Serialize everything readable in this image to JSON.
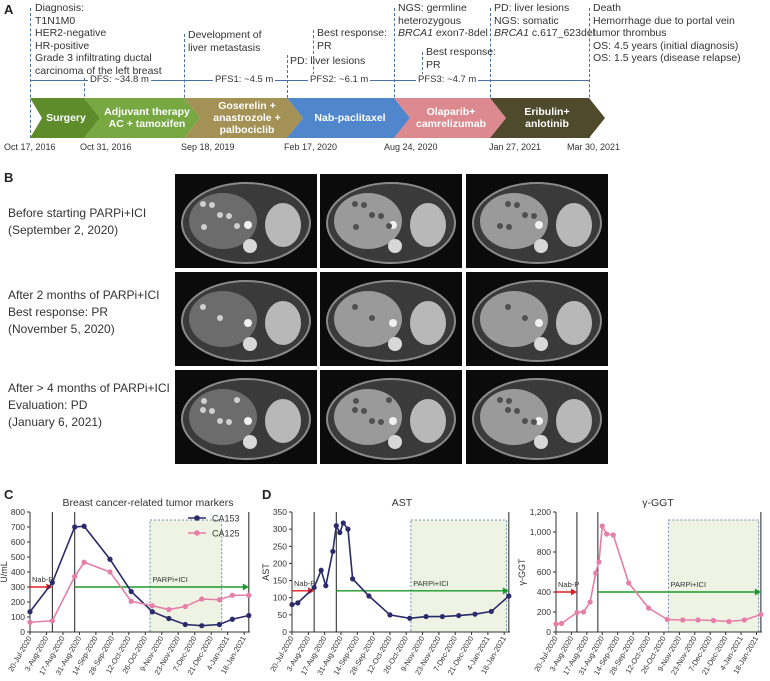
{
  "panel_labels": {
    "a": "A",
    "b": "B",
    "c": "C",
    "d": "D"
  },
  "timeline": {
    "annotations": {
      "diagnosis": [
        "Diagnosis:",
        "T1N1M0",
        "HER2-negative",
        "HR-positive",
        "Grade 3 infiltrating ductal",
        "carcinoma of the left breast"
      ],
      "liver_mets": [
        "Development of",
        "liver metastasis"
      ],
      "pd1": "PD: liver lesions",
      "best_pr": [
        "Best response:",
        "PR"
      ],
      "ngs_germline": [
        "NGS: germline",
        "heterozygous"
      ],
      "ngs_germline_gene": "BRCA1",
      "ngs_germline_var": " exon7-8del",
      "best_pr2": [
        "Best response:",
        "PR"
      ],
      "pd2": "PD: liver lesions",
      "ngs_somatic": "NGS: somatic",
      "ngs_somatic_gene": "BRCA1",
      "ngs_somatic_var": " c.617_623del",
      "death": [
        "Death",
        "Hemorrhage due to portal vein",
        "tumor thrombus",
        "OS: 4.5 years (initial diagnosis)",
        "OS: 1.5 years (disease relapse)"
      ]
    },
    "intervals": [
      "DFS: ~34.8 m",
      "PFS1: ~4.5 m",
      "PFS2: ~6.1 m",
      "PFS3: ~4.7 m"
    ],
    "treatments": [
      {
        "label": "Surgery",
        "color": "#5f8c2a"
      },
      {
        "label": "Adjuvant therapy\nAC + tamoxifen",
        "color": "#77a842"
      },
      {
        "label": "Goserelin +\nanastrozole +\npalbociclib",
        "color": "#a39155"
      },
      {
        "label": "Nab-paclitaxel",
        "color": "#4f86cc"
      },
      {
        "label": "Olaparib+\ncamrelizumab",
        "color": "#dc8a8f"
      },
      {
        "label": "Eribulin+\nanlotinib",
        "color": "#4f4a2c"
      }
    ],
    "dates": [
      "Oct 17, 2016",
      "Oct 31, 2016",
      "Sep 18, 2019",
      "Feb 17, 2020",
      "Aug 24, 2020",
      "Jan 27, 2021",
      "Mar 30, 2021"
    ]
  },
  "imaging": {
    "rows": [
      {
        "lines": [
          "Before starting PARPi+ICI",
          "(September 2, 2020)"
        ]
      },
      {
        "lines": [
          "After 2 months of PARPi+ICI",
          "Best response: PR",
          "(November 5, 2020)"
        ]
      },
      {
        "lines": [
          "After > 4 months of PARPi+ICI",
          "Evaluation: PD",
          "(January 6, 2021)"
        ]
      }
    ]
  },
  "chart_data": [
    {
      "type": "line",
      "title": "Breast cancer-related tumor markers",
      "ylabel": "U/mL",
      "ylim": [
        0,
        800
      ],
      "yticks": [
        0,
        100,
        200,
        300,
        400,
        500,
        600,
        700,
        800
      ],
      "xticks": [
        "20-Jul-2020",
        "3-Aug-2020",
        "17-Aug-2020",
        "31-Aug-2020",
        "14-Sep-2020",
        "28-Sep-2020",
        "12-Oct-2020",
        "26-Oct-2020",
        "9-Nov-2020",
        "23-Nov-2020",
        "7-Dec-2020",
        "21-Dec-2020",
        "4-Jan-2021",
        "18-Jan-2021"
      ],
      "xrange": [
        "2020-07-20",
        "2021-01-23"
      ],
      "series": [
        {
          "name": "CA153",
          "color": "#2b2a6b",
          "points": [
            [
              "2020-07-20",
              135
            ],
            [
              "2020-08-08",
              330
            ],
            [
              "2020-08-27",
              700
            ],
            [
              "2020-09-04",
              705
            ],
            [
              "2020-09-26",
              485
            ],
            [
              "2020-10-14",
              270
            ],
            [
              "2020-11-01",
              135
            ],
            [
              "2020-11-15",
              90
            ],
            [
              "2020-11-29",
              50
            ],
            [
              "2020-12-13",
              42
            ],
            [
              "2020-12-28",
              50
            ],
            [
              "2021-01-08",
              85
            ],
            [
              "2021-01-22",
              110
            ]
          ]
        },
        {
          "name": "CA125",
          "color": "#e57fa8",
          "points": [
            [
              "2020-07-20",
              65
            ],
            [
              "2020-08-08",
              75
            ],
            [
              "2020-08-27",
              370
            ],
            [
              "2020-09-04",
              465
            ],
            [
              "2020-09-26",
              400
            ],
            [
              "2020-10-14",
              205
            ],
            [
              "2020-11-01",
              175
            ],
            [
              "2020-11-15",
              150
            ],
            [
              "2020-11-29",
              170
            ],
            [
              "2020-12-13",
              220
            ],
            [
              "2020-12-28",
              215
            ],
            [
              "2021-01-08",
              245
            ],
            [
              "2021-01-22",
              245
            ]
          ]
        }
      ],
      "vlines": [
        "2020-08-08",
        "2020-08-27",
        "2021-01-22"
      ],
      "shade": [
        "2020-10-30",
        "2020-12-30"
      ],
      "arrows": [
        {
          "label": "Nab-P",
          "color": "#e02020",
          "from": "2020-07-20",
          "to": "2020-08-08",
          "y": 300
        },
        {
          "label": "PARPi+ICI",
          "color": "#1a9a2a",
          "from": "2020-08-27",
          "to": "2021-01-22",
          "y": 300
        }
      ]
    },
    {
      "type": "line",
      "title": "AST",
      "ylabel": "AST",
      "ylim": [
        0,
        350
      ],
      "yticks": [
        0,
        50,
        100,
        150,
        200,
        250,
        300,
        350
      ],
      "xticks": [
        "20-Jul-2020",
        "3-Aug-2020",
        "17-Aug-2020",
        "31-Aug-2020",
        "14-Sep-2020",
        "28-Sep-2020",
        "12-Oct-2020",
        "26-Oct-2020",
        "9-Nov-2020",
        "23-Nov-2020",
        "7-Dec-2020",
        "21-Dec-2020",
        "4-Jan-2021",
        "18-Jan-2021"
      ],
      "xrange": [
        "2020-07-20",
        "2021-01-23"
      ],
      "series": [
        {
          "name": "",
          "color": "#2b2a6b",
          "points": [
            [
              "2020-07-20",
              80
            ],
            [
              "2020-07-25",
              85
            ],
            [
              "2020-08-08",
              130
            ],
            [
              "2020-08-14",
              180
            ],
            [
              "2020-08-18",
              135
            ],
            [
              "2020-08-24",
              235
            ],
            [
              "2020-08-27",
              310
            ],
            [
              "2020-08-30",
              290
            ],
            [
              "2020-09-02",
              318
            ],
            [
              "2020-09-06",
              300
            ],
            [
              "2020-09-10",
              155
            ],
            [
              "2020-09-24",
              105
            ],
            [
              "2020-10-12",
              50
            ],
            [
              "2020-10-29",
              40
            ],
            [
              "2020-11-12",
              45
            ],
            [
              "2020-11-26",
              45
            ],
            [
              "2020-12-10",
              48
            ],
            [
              "2020-12-24",
              52
            ],
            [
              "2021-01-07",
              60
            ],
            [
              "2021-01-22",
              105
            ]
          ]
        }
      ],
      "vlines": [
        "2020-08-08",
        "2020-08-27",
        "2021-01-22"
      ],
      "shade": [
        "2020-10-30",
        "2021-01-20"
      ],
      "arrows": [
        {
          "label": "Nab-P",
          "color": "#e02020",
          "from": "2020-07-20",
          "to": "2020-08-08",
          "y": 120
        },
        {
          "label": "PARPi+ICI",
          "color": "#1a9a2a",
          "from": "2020-08-27",
          "to": "2021-01-22",
          "y": 120
        }
      ]
    },
    {
      "type": "line",
      "title": "γ-GGT",
      "ylabel": "γ-GGT",
      "ylim": [
        0,
        1200
      ],
      "yticks": [
        0,
        200,
        400,
        600,
        800,
        1000,
        1200
      ],
      "yticklabels": [
        "0",
        "200",
        "400",
        "600",
        "800",
        "1,000",
        "1,200"
      ],
      "xticks": [
        "20-Jul-2020",
        "3-Aug-2020",
        "17-Aug-2020",
        "31-Aug-2020",
        "14-Sep-2020",
        "28-Sep-2020",
        "12-Oct-2020",
        "26-Oct-2020",
        "9-Nov-2020",
        "23-Nov-2020",
        "7-Dec-2020",
        "21-Dec-2020",
        "4-Jan-2021",
        "18-Jan-2021"
      ],
      "xrange": [
        "2020-07-20",
        "2021-01-23"
      ],
      "series": [
        {
          "name": "",
          "color": "#e57fa8",
          "points": [
            [
              "2020-07-20",
              80
            ],
            [
              "2020-07-25",
              85
            ],
            [
              "2020-08-08",
              195
            ],
            [
              "2020-08-14",
              200
            ],
            [
              "2020-08-20",
              300
            ],
            [
              "2020-08-25",
              590
            ],
            [
              "2020-08-28",
              700
            ],
            [
              "2020-08-31",
              1060
            ],
            [
              "2020-09-04",
              980
            ],
            [
              "2020-09-10",
              970
            ],
            [
              "2020-09-24",
              490
            ],
            [
              "2020-10-12",
              240
            ],
            [
              "2020-10-29",
              125
            ],
            [
              "2020-11-12",
              120
            ],
            [
              "2020-11-26",
              120
            ],
            [
              "2020-12-10",
              115
            ],
            [
              "2020-12-24",
              105
            ],
            [
              "2021-01-07",
              120
            ],
            [
              "2021-01-22",
              175
            ]
          ]
        }
      ],
      "vlines": [
        "2020-08-08",
        "2020-08-27",
        "2021-01-22"
      ],
      "shade": [
        "2020-10-30",
        "2021-01-20"
      ],
      "arrows": [
        {
          "label": "Nab-P",
          "color": "#e02020",
          "from": "2020-07-20",
          "to": "2020-08-08",
          "y": 400
        },
        {
          "label": "PARPi+ICI",
          "color": "#1a9a2a",
          "from": "2020-08-27",
          "to": "2021-01-22",
          "y": 400
        }
      ]
    }
  ]
}
